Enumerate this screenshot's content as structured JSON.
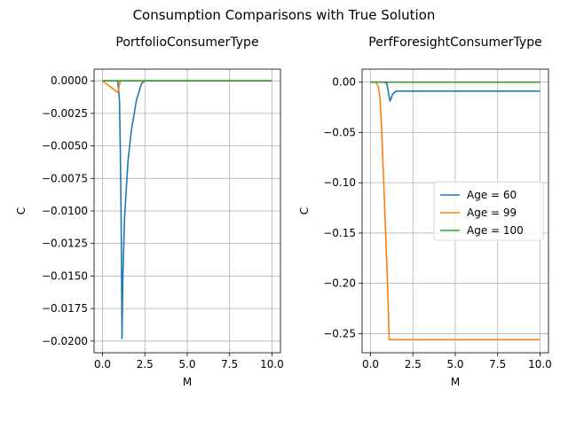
{
  "figure_title": "Consumption Comparisons with True Solution",
  "chart_data": [
    {
      "type": "line",
      "title": "PortfolioConsumerType",
      "xlabel": "M",
      "ylabel": "C",
      "xlim": [
        -0.5,
        10.5
      ],
      "ylim": [
        -0.0209,
        0.0009
      ],
      "xticks": [
        "0.0",
        "2.5",
        "5.0",
        "7.5",
        "10.0"
      ],
      "yticks": [
        "0.0000",
        "−0.0025",
        "−0.0050",
        "−0.0075",
        "−0.0100",
        "−0.0125",
        "−0.0150",
        "−0.0175",
        "−0.0200"
      ],
      "grid": true,
      "legend": "none",
      "series": [
        {
          "color": "#1f77b4",
          "x": [
            0,
            0.5,
            0.9,
            1.0,
            1.05,
            1.1,
            1.15,
            1.2,
            1.3,
            1.5,
            1.7,
            2.0,
            2.3,
            2.5,
            3.0,
            5.0,
            7.5,
            10.0
          ],
          "y": [
            0,
            0,
            0,
            -0.0015,
            -0.0055,
            -0.011,
            -0.0198,
            -0.015,
            -0.0105,
            -0.0062,
            -0.0038,
            -0.0015,
            -0.0002,
            0,
            0,
            0,
            0,
            0
          ]
        },
        {
          "color": "#ff7f0e",
          "x": [
            0,
            0.3,
            0.6,
            0.9,
            1.0,
            1.05,
            2.0,
            5.0,
            10.0
          ],
          "y": [
            0,
            -0.0003,
            -0.0006,
            -0.0009,
            -0.0003,
            0,
            0,
            0,
            0
          ]
        },
        {
          "color": "#2ca02c",
          "x": [
            0,
            2.5,
            5.0,
            7.5,
            10.0
          ],
          "y": [
            0,
            0,
            0,
            0,
            0
          ]
        }
      ]
    },
    {
      "type": "line",
      "title": "PerfForesightConsumerType",
      "xlabel": "M",
      "ylabel": "C",
      "xlim": [
        -0.5,
        10.5
      ],
      "ylim": [
        -0.269,
        0.0129
      ],
      "xticks": [
        "0.0",
        "2.5",
        "5.0",
        "7.5",
        "10.0"
      ],
      "yticks": [
        "0.00",
        "−0.05",
        "−0.10",
        "−0.15",
        "−0.20",
        "−0.25"
      ],
      "grid": true,
      "legend": "center-right",
      "series": [
        {
          "name": "Age = 60",
          "color": "#1f77b4",
          "x": [
            0,
            0.8,
            0.95,
            1.05,
            1.15,
            1.3,
            1.5,
            2.0,
            5.0,
            10.0
          ],
          "y": [
            0,
            0,
            -0.001,
            -0.01,
            -0.019,
            -0.012,
            -0.009,
            -0.009,
            -0.009,
            -0.009
          ],
          "linewidth": 1.5
        },
        {
          "name": "Age = 99",
          "color": "#ff7f0e",
          "x": [
            0,
            0.3,
            0.45,
            0.55,
            0.65,
            0.8,
            1.0,
            1.1,
            5.0,
            10.0
          ],
          "y": [
            0,
            0,
            -0.004,
            -0.015,
            -0.045,
            -0.11,
            -0.2,
            -0.256,
            -0.256,
            -0.256
          ]
        },
        {
          "name": "Age = 100",
          "color": "#2ca02c",
          "x": [
            0,
            2.5,
            5.0,
            7.5,
            10.0
          ],
          "y": [
            0,
            0,
            0,
            0,
            0
          ]
        }
      ]
    }
  ]
}
